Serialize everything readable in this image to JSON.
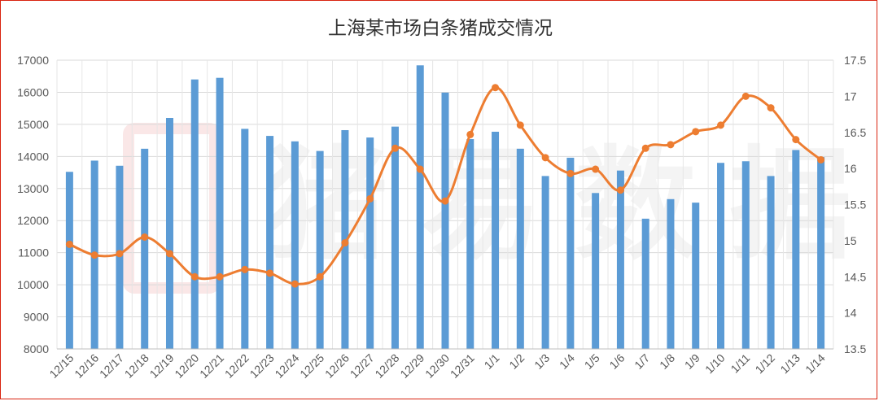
{
  "chart_data": {
    "type": "bar",
    "title": "上海某市场白条猪成交情况",
    "watermark_text": "猪易数据",
    "categories": [
      "12/15",
      "12/16",
      "12/17",
      "12/18",
      "12/19",
      "12/20",
      "12/21",
      "12/22",
      "12/23",
      "12/24",
      "12/25",
      "12/26",
      "12/27",
      "12/28",
      "12/29",
      "12/30",
      "12/31",
      "1/1",
      "1/2",
      "1/3",
      "1/4",
      "1/5",
      "1/6",
      "1/7",
      "1/8",
      "1/9",
      "1/10",
      "1/11",
      "1/12",
      "1/13",
      "1/14"
    ],
    "series": [
      {
        "type": "bar",
        "axis": "left",
        "color": "#5b9bd5",
        "values": [
          13520,
          13870,
          13710,
          14240,
          15200,
          16400,
          16450,
          14860,
          14640,
          14470,
          14170,
          14820,
          14590,
          14930,
          16840,
          15990,
          14540,
          14770,
          14240,
          13390,
          13960,
          12860,
          13560,
          12060,
          12670,
          12560,
          13800,
          13850,
          13390,
          14200,
          13980
        ]
      },
      {
        "type": "line",
        "axis": "right",
        "color": "#ed7d31",
        "values": [
          14.95,
          14.8,
          14.82,
          15.05,
          14.82,
          14.5,
          14.5,
          14.6,
          14.55,
          14.4,
          14.5,
          14.97,
          15.58,
          16.28,
          15.99,
          15.55,
          16.47,
          17.12,
          16.6,
          16.15,
          15.93,
          15.99,
          15.7,
          16.28,
          16.33,
          16.51,
          16.6,
          17.0,
          16.84,
          16.4,
          16.12
        ]
      }
    ],
    "y_left": {
      "min": 8000,
      "max": 17000,
      "ticks": [
        "8000",
        "9000",
        "10000",
        "11000",
        "12000",
        "13000",
        "14000",
        "15000",
        "16000",
        "17000"
      ]
    },
    "y_right": {
      "min": 13.5,
      "max": 17.5,
      "ticks": [
        "13.5",
        "14",
        "14.5",
        "15",
        "15.5",
        "16",
        "16.5",
        "17",
        "17.5"
      ]
    },
    "grid": true,
    "legend": "none"
  }
}
